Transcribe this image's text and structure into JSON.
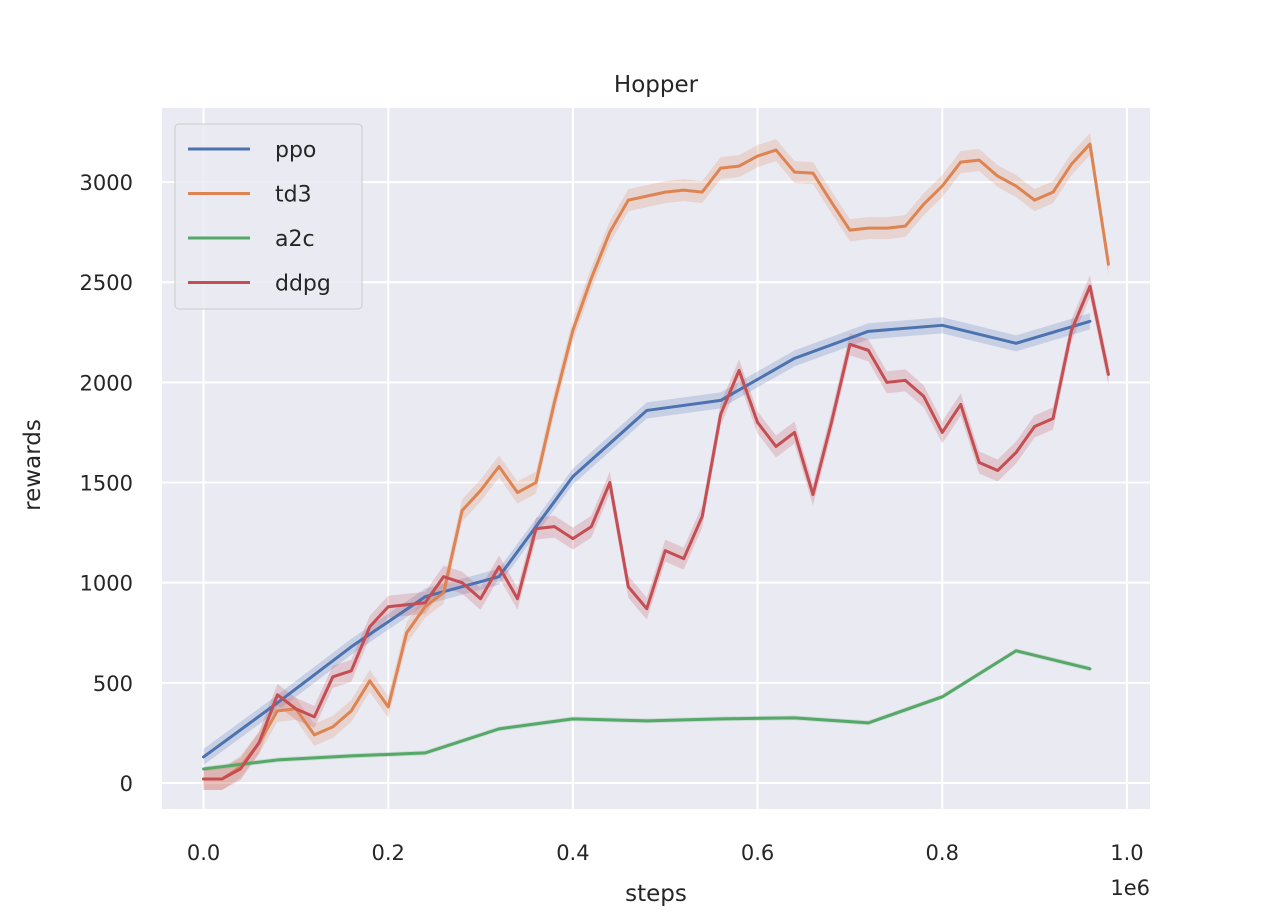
{
  "chart_data": {
    "type": "line",
    "title": "Hopper",
    "xlabel": "steps",
    "ylabel": "rewards",
    "x_offset_text": "1e6",
    "xlim": [
      -0.045,
      1.025
    ],
    "ylim": [
      -130,
      3370
    ],
    "x_ticks": [
      0.0,
      0.2,
      0.4,
      0.6,
      0.8,
      1.0
    ],
    "x_tick_labels": [
      "0.0",
      "0.2",
      "0.4",
      "0.6",
      "0.8",
      "1.0"
    ],
    "y_ticks": [
      0,
      500,
      1000,
      1500,
      2000,
      2500,
      3000
    ],
    "y_tick_labels": [
      "0",
      "500",
      "1000",
      "1500",
      "2000",
      "2500",
      "3000"
    ],
    "grid": true,
    "legend_position": "top-left",
    "background": "#eaeaf2",
    "series": [
      {
        "name": "ppo",
        "color": "#4c72b0",
        "band": 40,
        "x": [
          0.0,
          0.08,
          0.16,
          0.24,
          0.32,
          0.4,
          0.48,
          0.56,
          0.64,
          0.72,
          0.8,
          0.88,
          0.96
        ],
        "y": [
          130,
          400,
          680,
          930,
          1030,
          1530,
          1860,
          1910,
          2120,
          2255,
          2285,
          2195,
          2305
        ]
      },
      {
        "name": "td3",
        "color": "#dd8452",
        "band": 55,
        "x": [
          0.0,
          0.02,
          0.04,
          0.06,
          0.08,
          0.1,
          0.12,
          0.14,
          0.16,
          0.18,
          0.2,
          0.22,
          0.24,
          0.26,
          0.28,
          0.3,
          0.32,
          0.34,
          0.36,
          0.38,
          0.4,
          0.42,
          0.44,
          0.46,
          0.48,
          0.5,
          0.52,
          0.54,
          0.56,
          0.58,
          0.6,
          0.62,
          0.64,
          0.66,
          0.68,
          0.7,
          0.72,
          0.74,
          0.76,
          0.78,
          0.8,
          0.82,
          0.84,
          0.86,
          0.88,
          0.9,
          0.92,
          0.94,
          0.96,
          0.98
        ],
        "y": [
          20,
          20,
          80,
          200,
          360,
          370,
          240,
          280,
          360,
          510,
          380,
          750,
          880,
          950,
          1360,
          1460,
          1580,
          1450,
          1500,
          1900,
          2260,
          2520,
          2750,
          2910,
          2930,
          2950,
          2960,
          2950,
          3070,
          3080,
          3130,
          3160,
          3050,
          3045,
          2900,
          2760,
          2770,
          2770,
          2780,
          2890,
          2980,
          3100,
          3110,
          3030,
          2980,
          2910,
          2950,
          3090,
          3190,
          2590
        ]
      },
      {
        "name": "a2c",
        "color": "#55a868",
        "band": 12,
        "x": [
          0.0,
          0.08,
          0.16,
          0.24,
          0.32,
          0.4,
          0.48,
          0.56,
          0.64,
          0.72,
          0.8,
          0.88,
          0.96
        ],
        "y": [
          70,
          115,
          135,
          150,
          270,
          320,
          310,
          320,
          325,
          300,
          430,
          660,
          570
        ]
      },
      {
        "name": "ddpg",
        "color": "#c44e52",
        "band": 55,
        "x": [
          0.0,
          0.02,
          0.04,
          0.06,
          0.08,
          0.1,
          0.12,
          0.14,
          0.16,
          0.18,
          0.2,
          0.22,
          0.24,
          0.26,
          0.28,
          0.3,
          0.32,
          0.34,
          0.36,
          0.38,
          0.4,
          0.42,
          0.44,
          0.46,
          0.48,
          0.5,
          0.52,
          0.54,
          0.56,
          0.58,
          0.6,
          0.62,
          0.64,
          0.66,
          0.68,
          0.7,
          0.72,
          0.74,
          0.76,
          0.78,
          0.8,
          0.82,
          0.84,
          0.86,
          0.88,
          0.9,
          0.92,
          0.94,
          0.96,
          0.98
        ],
        "y": [
          20,
          20,
          70,
          200,
          440,
          370,
          330,
          530,
          560,
          780,
          880,
          890,
          900,
          1030,
          1000,
          920,
          1080,
          920,
          1270,
          1280,
          1220,
          1280,
          1500,
          980,
          870,
          1160,
          1120,
          1330,
          1840,
          2060,
          1800,
          1680,
          1750,
          1440,
          1800,
          2190,
          2160,
          2000,
          2010,
          1930,
          1750,
          1890,
          1600,
          1560,
          1650,
          1780,
          1820,
          2260,
          2480,
          2040
        ]
      }
    ]
  }
}
